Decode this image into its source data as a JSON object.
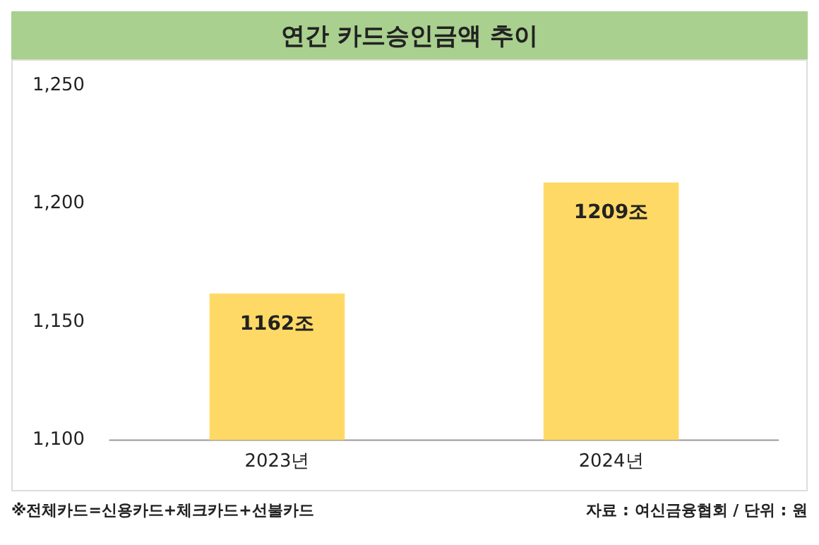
{
  "chart_data": {
    "type": "bar",
    "title": "연간 카드승인금액 추이",
    "categories": [
      "2023년",
      "2024년"
    ],
    "values": [
      1162,
      1209
    ],
    "color": "#ffd966",
    "value_labels": [
      "1162조",
      "1209조"
    ],
    "ylim": [
      1100,
      1250
    ],
    "yticks": [
      {
        "value": 1100,
        "label": "1,100"
      },
      {
        "value": 1150,
        "label": "1,150"
      },
      {
        "value": 1200,
        "label": "1,200"
      },
      {
        "value": 1250,
        "label": "1,250"
      }
    ],
    "grid": false,
    "legend": false,
    "annotations": [
      "※전체카드=신용카드+체크카드+선불카드",
      "자료 : 여신금융협회 / 단위 : 원"
    ]
  }
}
